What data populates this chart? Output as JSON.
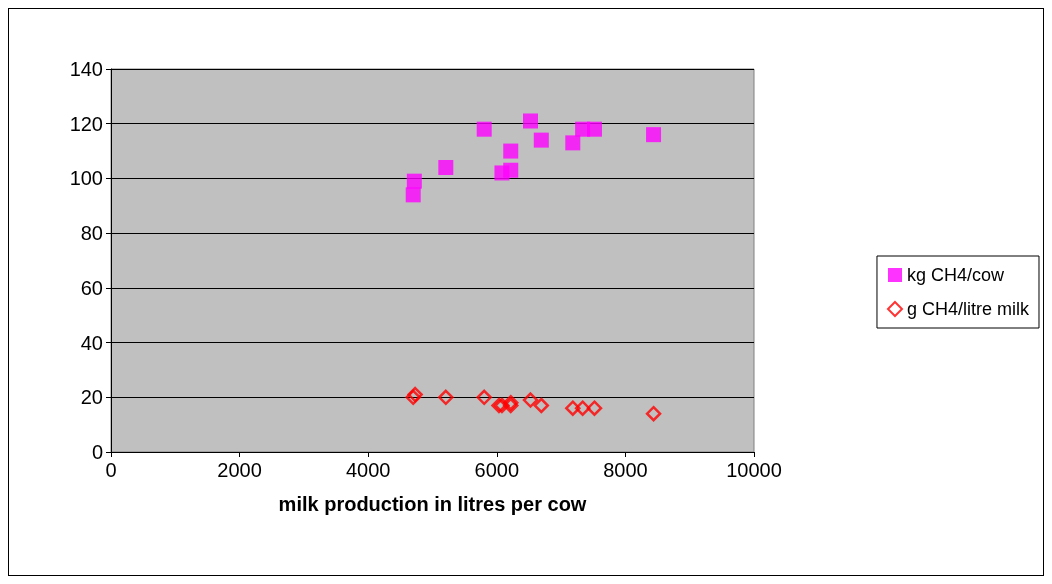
{
  "chart_data": {
    "type": "scatter",
    "xlabel": "milk production in litres per cow",
    "xlim": [
      0,
      10000
    ],
    "xticks": [
      0,
      2000,
      4000,
      6000,
      8000,
      10000
    ],
    "ylim": [
      0,
      140
    ],
    "yticks": [
      0,
      20,
      40,
      60,
      80,
      100,
      120,
      140
    ],
    "grid": "y",
    "legend": "right",
    "series": [
      {
        "name": "kg CH4/cow",
        "color": "#ff00ff",
        "marker": "square",
        "x": [
          4717,
          4700,
          5207,
          5804,
          6040,
          6080,
          6217,
          6217,
          6524,
          6692,
          7182,
          7335,
          7519,
          8438
        ],
        "values": [
          99,
          94,
          104,
          118,
          null,
          102,
          103,
          110,
          121,
          114,
          113,
          118,
          118,
          116
        ]
      },
      {
        "name": "g CH4/litre milk",
        "color": "#ff0000",
        "marker": "diamond",
        "x": [
          4700,
          4730,
          5207,
          5804,
          6034,
          6080,
          6217,
          6217,
          6524,
          6692,
          7182,
          7335,
          7519,
          8438
        ],
        "values": [
          20,
          21,
          20,
          20,
          17,
          17,
          18,
          17,
          19,
          17,
          16,
          16,
          16,
          14
        ]
      }
    ]
  }
}
